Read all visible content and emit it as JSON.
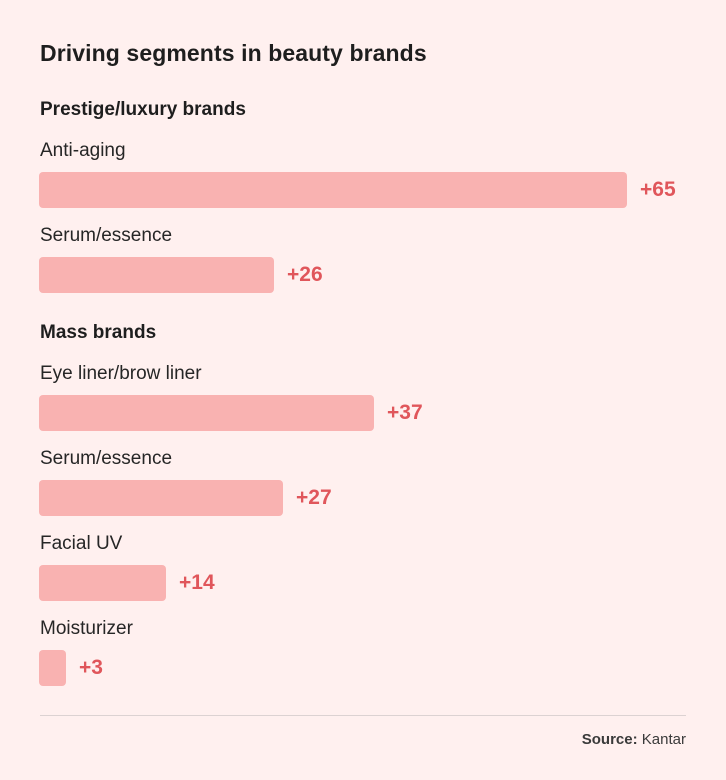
{
  "chart_data": {
    "type": "bar",
    "orientation": "horizontal",
    "title": "Driving segments in beauty brands",
    "groups": [
      {
        "name": "Prestige/luxury brands",
        "categories": [
          "Anti-aging",
          "Serum/essence"
        ],
        "values": [
          65,
          26
        ],
        "value_labels": [
          "+65",
          "+26"
        ]
      },
      {
        "name": "Mass brands",
        "categories": [
          "Eye liner/brow liner",
          "Serum/essence",
          "Facial UV",
          "Moisturizer"
        ],
        "values": [
          37,
          27,
          14,
          3
        ],
        "value_labels": [
          "+37",
          "+27",
          "+14",
          "+3"
        ]
      }
    ],
    "xlim": [
      0,
      65
    ],
    "bar_color": "#f9b2b1",
    "value_color": "#e0565b"
  },
  "footer": {
    "source_label": "Source:",
    "source_value": "Kantar"
  }
}
